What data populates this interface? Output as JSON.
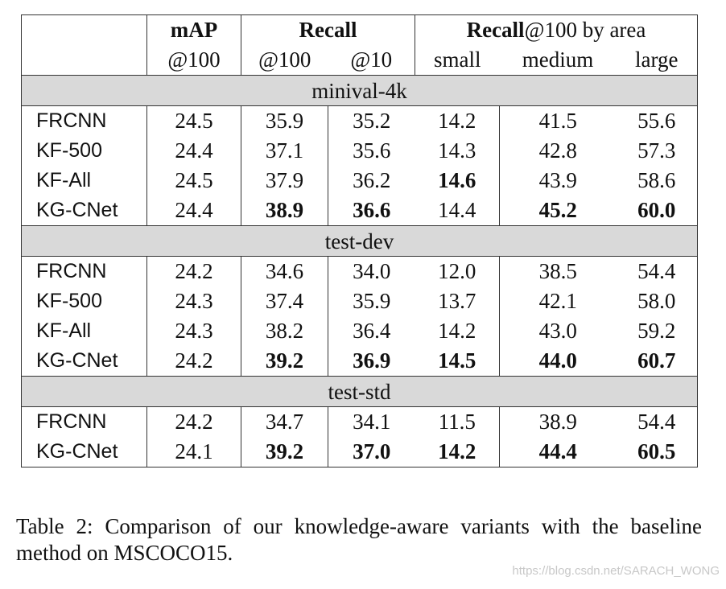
{
  "table": {
    "header": {
      "map": "mAP",
      "map_sub": "@100",
      "recall": "Recall",
      "recall_sub": [
        "@100",
        "@10"
      ],
      "area_bold": "Recall",
      "area_rest": "@100 by area",
      "area_sub": [
        "small",
        "medium",
        "large"
      ]
    },
    "sections": [
      {
        "title": "minival-4k",
        "rows": [
          {
            "method": "FRCNN",
            "values": [
              "24.5",
              "35.9",
              "35.2",
              "14.2",
              "41.5",
              "55.6"
            ]
          },
          {
            "method": "KF-500",
            "values": [
              "24.4",
              "37.1",
              "35.6",
              "14.3",
              "42.8",
              "57.3"
            ]
          },
          {
            "method": "KF-All",
            "values": [
              "24.5",
              "37.9",
              "36.2",
              "14.6",
              "43.9",
              "58.6"
            ],
            "bold": [
              3
            ]
          },
          {
            "method": "KG-CNet",
            "values": [
              "24.4",
              "38.9",
              "36.6",
              "14.4",
              "45.2",
              "60.0"
            ],
            "bold": [
              1,
              2,
              4,
              5
            ]
          }
        ]
      },
      {
        "title": "test-dev",
        "rows": [
          {
            "method": "FRCNN",
            "values": [
              "24.2",
              "34.6",
              "34.0",
              "12.0",
              "38.5",
              "54.4"
            ]
          },
          {
            "method": "KF-500",
            "values": [
              "24.3",
              "37.4",
              "35.9",
              "13.7",
              "42.1",
              "58.0"
            ]
          },
          {
            "method": "KF-All",
            "values": [
              "24.3",
              "38.2",
              "36.4",
              "14.2",
              "43.0",
              "59.2"
            ]
          },
          {
            "method": "KG-CNet",
            "values": [
              "24.2",
              "39.2",
              "36.9",
              "14.5",
              "44.0",
              "60.7"
            ],
            "bold": [
              1,
              2,
              3,
              4,
              5
            ]
          }
        ]
      },
      {
        "title": "test-std",
        "rows": [
          {
            "method": "FRCNN",
            "values": [
              "24.2",
              "34.7",
              "34.1",
              "11.5",
              "38.9",
              "54.4"
            ]
          },
          {
            "method": "KG-CNet",
            "values": [
              "24.1",
              "39.2",
              "37.0",
              "14.2",
              "44.4",
              "60.5"
            ],
            "bold": [
              1,
              2,
              3,
              4,
              5
            ]
          }
        ]
      }
    ]
  },
  "caption": "Table 2:  Comparison of our knowledge-aware variants with the baseline method on MSCOCO15.",
  "watermark": "https://blog.csdn.net/SARACH_WONG"
}
